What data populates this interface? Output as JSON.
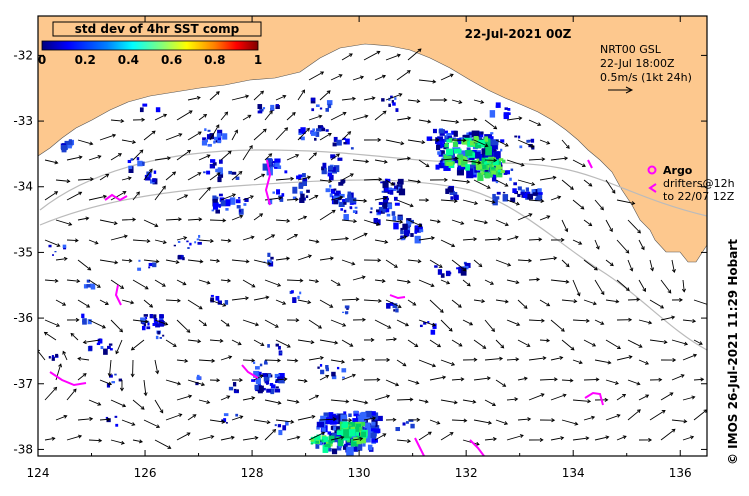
{
  "title": "22-Jul-2021 00Z",
  "colorbar": {
    "title": "std dev of 4hr SST comp",
    "ticks": [
      "0",
      "0.2",
      "0.4",
      "0.6",
      "0.8",
      "1"
    ],
    "colors": [
      "#00007f",
      "#0000ff",
      "#007fff",
      "#00ffff",
      "#7fff7f",
      "#ffff00",
      "#ff7f00",
      "#ff0000",
      "#7f0000"
    ]
  },
  "current_legend": {
    "line1": "NRT00 GSL",
    "line2": "22-Jul 18:00Z",
    "line3": "0.5m/s (1kt 24h)"
  },
  "argo_legend": {
    "argo_label": "Argo",
    "drifters_line1": "drifters@12h",
    "drifters_line2": "to 22/07 12Z"
  },
  "credit": "© IMOS 26-Jul-2021 11:29 Hobart",
  "axes": {
    "x_ticks": [
      "124",
      "126",
      "128",
      "130",
      "132",
      "134",
      "136"
    ],
    "y_ticks": [
      "-32",
      "-33",
      "-34",
      "-35",
      "-36",
      "-37",
      "-38"
    ],
    "lon_range": [
      124,
      136.5
    ],
    "lat_range": [
      -31.4,
      -38.1
    ]
  },
  "colors": {
    "land": "#fdc88e",
    "argo": "#ff00ff",
    "track": "#bbbbbb"
  }
}
